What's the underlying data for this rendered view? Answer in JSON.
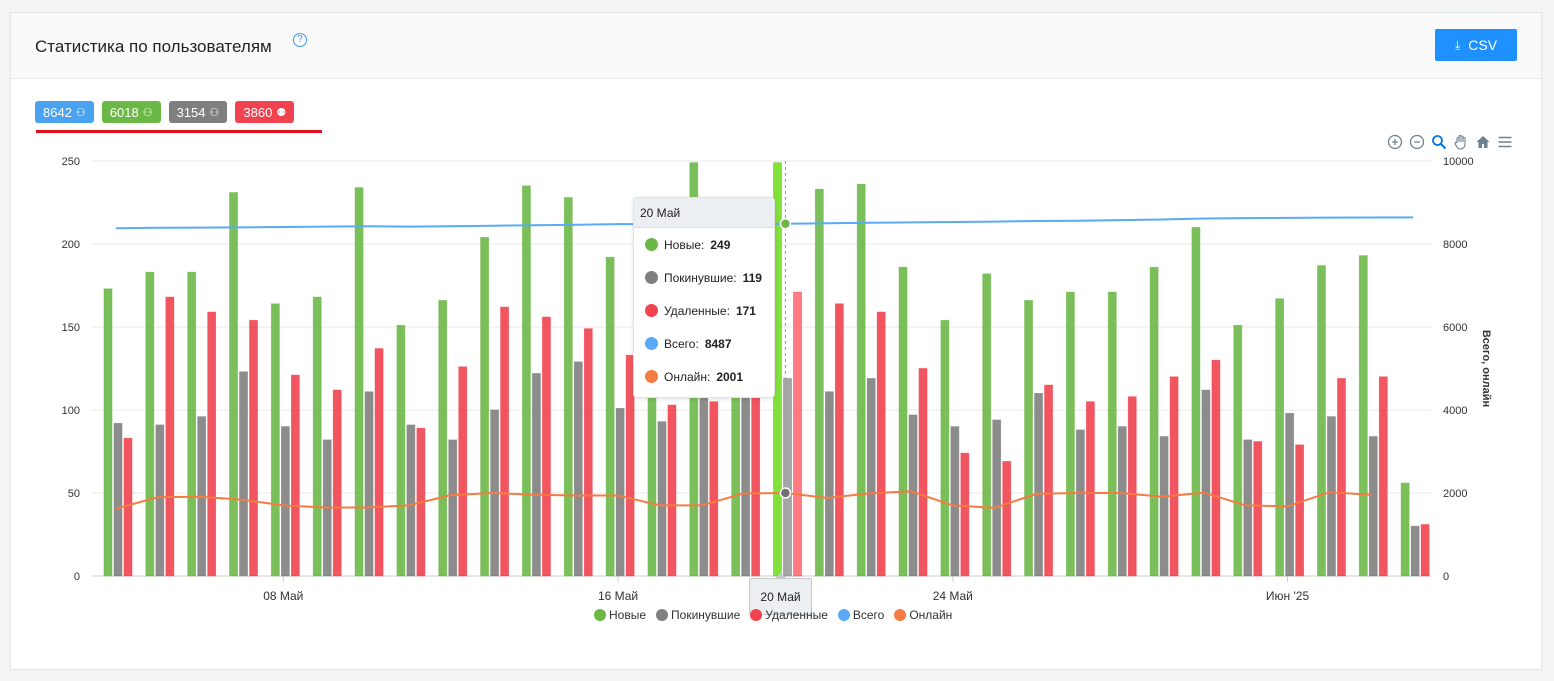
{
  "header": {
    "title": "Статистика по пользователям",
    "help_icon": "question-circle-icon",
    "csv_label": "CSV"
  },
  "badges": [
    {
      "value": "8642",
      "color": "#4aa3f0",
      "icon": "user-icon"
    },
    {
      "value": "6018",
      "color": "#6cb847",
      "icon": "user-icon"
    },
    {
      "value": "3154",
      "color": "#7f7f7f",
      "icon": "user-icon"
    },
    {
      "value": "3860",
      "color": "#f0434f",
      "icon": "user-remove-icon"
    }
  ],
  "tooltip": {
    "title": "20 Май",
    "rows": [
      {
        "label": "Новые:",
        "value": "249",
        "color": "#6cb847"
      },
      {
        "label": "Покинувшие:",
        "value": "119",
        "color": "#808080"
      },
      {
        "label": "Удаленные:",
        "value": "171",
        "color": "#f0434f"
      },
      {
        "label": "Всего:",
        "value": "8487",
        "color": "#5aaaf5"
      },
      {
        "label": "Онлайн:",
        "value": "2001",
        "color": "#f47c44"
      }
    ]
  },
  "xtip_label": "20 Май",
  "chart_data": {
    "type": "bar",
    "categories": [
      "04.05",
      "05.05",
      "06.05",
      "07.05",
      "08.05",
      "09.05",
      "10.05",
      "11.05",
      "12.05",
      "13.05",
      "14.05",
      "15.05",
      "16.05",
      "17.05",
      "18.05",
      "19.05",
      "20.05",
      "21.05",
      "22.05",
      "23.05",
      "24.05",
      "25.05",
      "26.05",
      "27.05",
      "28.05",
      "29.05",
      "30.05",
      "31.05",
      "01.06",
      "02.06",
      "03.06",
      "04.06"
    ],
    "x_tick_labels": [
      {
        "index": 4,
        "label": "08 Май"
      },
      {
        "index": 12,
        "label": "16 Май"
      },
      {
        "index": 20,
        "label": "24 Май"
      },
      {
        "index": 28,
        "label": "Июн '25"
      }
    ],
    "highlight_index": 16,
    "series": [
      {
        "name": "Новые",
        "type": "bar",
        "color": "#6cb847",
        "values": [
          173,
          183,
          183,
          231,
          164,
          168,
          234,
          151,
          166,
          204,
          235,
          228,
          192,
          158,
          249,
          117,
          249,
          233,
          236,
          186,
          154,
          182,
          166,
          171,
          171,
          186,
          210,
          151,
          167,
          187,
          193,
          56
        ]
      },
      {
        "name": "Покинувшие",
        "type": "bar",
        "color": "#808080",
        "values": [
          92,
          91,
          96,
          123,
          90,
          82,
          111,
          91,
          82,
          100,
          122,
          129,
          101,
          93,
          115,
          110,
          119,
          111,
          119,
          97,
          90,
          94,
          110,
          88,
          90,
          84,
          112,
          82,
          98,
          96,
          84,
          30
        ]
      },
      {
        "name": "Удаленные",
        "type": "bar",
        "color": "#f0434f",
        "values": [
          83,
          168,
          159,
          154,
          121,
          112,
          137,
          89,
          126,
          162,
          156,
          149,
          133,
          103,
          105,
          133,
          171,
          164,
          159,
          125,
          74,
          69,
          115,
          105,
          108,
          120,
          130,
          81,
          79,
          119,
          120,
          31
        ]
      },
      {
        "name": "Всего",
        "type": "line",
        "axis": "right",
        "color": "#5aaaf5",
        "values": [
          8380,
          8390,
          8395,
          8400,
          8410,
          8420,
          8430,
          8420,
          8430,
          8440,
          8450,
          8465,
          8480,
          8480,
          8484,
          8486,
          8487,
          8500,
          8510,
          8520,
          8530,
          8540,
          8555,
          8560,
          8575,
          8590,
          8615,
          8625,
          8630,
          8635,
          8638,
          8640
        ]
      },
      {
        "name": "Онлайн",
        "type": "line",
        "axis": "right",
        "color": "#f47c44",
        "values": [
          1620,
          1900,
          1910,
          1840,
          1700,
          1650,
          1650,
          1700,
          1950,
          2000,
          1960,
          1940,
          1940,
          1700,
          1700,
          1990,
          2001,
          1880,
          1990,
          2040,
          1700,
          1640,
          1980,
          2000,
          2000,
          1910,
          2010,
          1700,
          1680,
          2020,
          1960,
          null
        ]
      }
    ],
    "ylim": [
      0,
      250
    ],
    "y_ticks": [
      0,
      50,
      100,
      150,
      200,
      250
    ],
    "y2lim": [
      0,
      10000
    ],
    "y2_ticks": [
      0,
      2000,
      4000,
      6000,
      8000,
      10000
    ],
    "y2label": "Всего, онлайн",
    "grid": true,
    "legend": "bottom-center"
  },
  "toolbar": [
    "zoom-in-icon",
    "zoom-out-icon",
    "magnifier-icon",
    "pan-hand-icon",
    "home-icon",
    "menu-icon"
  ]
}
